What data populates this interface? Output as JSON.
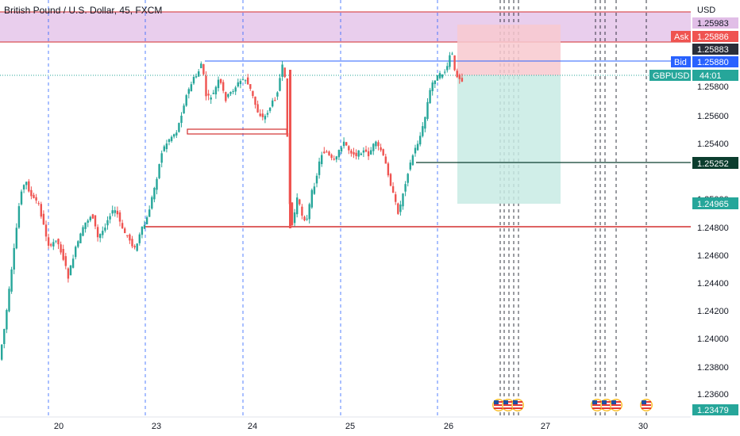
{
  "header": {
    "symbol_title": "British Pound / U.S. Dollar, 45, FXCM"
  },
  "price_axis": {
    "currency": "USD",
    "tick_labels": [
      "1.25800",
      "1.25600",
      "1.25400",
      "1.25000",
      "1.24800",
      "1.24600",
      "1.24400",
      "1.24200",
      "1.24000",
      "1.23800",
      "1.23600"
    ]
  },
  "time_axis": {
    "labels": [
      "20",
      "23",
      "24",
      "25",
      "26",
      "27",
      "30"
    ]
  },
  "price_tags": {
    "top": "1.25983",
    "ask_label": "Ask",
    "ask": "1.25886",
    "last": "1.25883",
    "bid_label": "Bid",
    "bid": "1.25880",
    "symbol_label": "GBPUSD",
    "countdown": "44:01",
    "level1": "1.25252",
    "level2": "1.24965",
    "bottom": "1.23479"
  },
  "colors": {
    "up": "#26a69a",
    "down": "#ef5350",
    "zone": "#e1bee7",
    "short_risk": "#f8c9cf",
    "short_reward": "#c8ebe4",
    "support_line": "#d32f2f",
    "bid_line": "#2962ff",
    "dark_level": "#0b3d2e"
  },
  "chart_data": {
    "type": "candlestick",
    "y_range": [
      1.234,
      1.2602
    ],
    "key_levels": {
      "supply_zone": [
        1.25886,
        1.25983
      ],
      "support": 1.248,
      "resistance_minor": 1.25252,
      "bid": 1.2588
    },
    "short_position": {
      "entry": 1.25832,
      "stop": 1.2596,
      "target": 1.24965
    }
  }
}
